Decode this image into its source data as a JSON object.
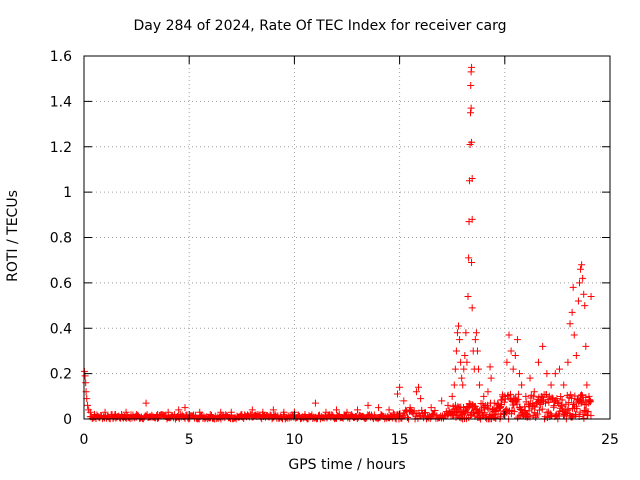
{
  "chart_data": {
    "type": "scatter",
    "title": "Day 284 of 2024, Rate Of TEC Index for receiver carg",
    "xlabel": "GPS time / hours",
    "ylabel": "ROTI / TECUs",
    "xlim": [
      0,
      25
    ],
    "ylim": [
      0,
      1.6
    ],
    "xticks": [
      "0",
      "5",
      "10",
      "15",
      "20",
      "25"
    ],
    "yticks": [
      "0",
      "0.2",
      "0.4",
      "0.6",
      "0.8",
      "1",
      "1.2",
      "1.4",
      "1.6"
    ],
    "grid": true,
    "marker": "+",
    "color": "#ff0000",
    "series": [
      {
        "name": "ROTI",
        "points": [
          [
            0.02,
            0.21
          ],
          [
            0.05,
            0.19
          ],
          [
            0.08,
            0.16
          ],
          [
            0.1,
            0.12
          ],
          [
            0.13,
            0.09
          ],
          [
            0.17,
            0.06
          ],
          [
            0.22,
            0.04
          ],
          [
            0.3,
            0.03
          ],
          [
            0.5,
            0.02
          ],
          [
            1.0,
            0.03
          ],
          [
            1.5,
            0.02
          ],
          [
            2.0,
            0.03
          ],
          [
            2.5,
            0.02
          ],
          [
            2.95,
            0.07
          ],
          [
            3.5,
            0.02
          ],
          [
            4.0,
            0.03
          ],
          [
            4.5,
            0.04
          ],
          [
            4.8,
            0.05
          ],
          [
            5.5,
            0.03
          ],
          [
            6.0,
            0.02
          ],
          [
            6.5,
            0.03
          ],
          [
            7.0,
            0.03
          ],
          [
            7.5,
            0.02
          ],
          [
            8.0,
            0.04
          ],
          [
            8.5,
            0.03
          ],
          [
            9.0,
            0.04
          ],
          [
            9.5,
            0.03
          ],
          [
            10.0,
            0.03
          ],
          [
            10.5,
            0.02
          ],
          [
            11.0,
            0.07
          ],
          [
            11.5,
            0.03
          ],
          [
            12.0,
            0.04
          ],
          [
            12.5,
            0.03
          ],
          [
            13.0,
            0.04
          ],
          [
            13.5,
            0.06
          ],
          [
            14.0,
            0.05
          ],
          [
            14.5,
            0.04
          ],
          [
            14.9,
            0.11
          ],
          [
            15.0,
            0.14
          ],
          [
            15.2,
            0.08
          ],
          [
            15.5,
            0.05
          ],
          [
            15.8,
            0.12
          ],
          [
            15.9,
            0.14
          ],
          [
            16.0,
            0.09
          ],
          [
            16.5,
            0.05
          ],
          [
            17.0,
            0.08
          ],
          [
            17.3,
            0.06
          ],
          [
            17.5,
            0.1
          ],
          [
            17.6,
            0.15
          ],
          [
            17.65,
            0.22
          ],
          [
            17.7,
            0.3
          ],
          [
            17.75,
            0.38
          ],
          [
            17.8,
            0.41
          ],
          [
            17.85,
            0.35
          ],
          [
            17.9,
            0.25
          ],
          [
            17.95,
            0.18
          ],
          [
            18.0,
            0.15
          ],
          [
            18.05,
            0.22
          ],
          [
            18.1,
            0.28
          ],
          [
            18.15,
            0.38
          ],
          [
            18.2,
            0.25
          ],
          [
            18.25,
            0.54
          ],
          [
            18.28,
            0.71
          ],
          [
            18.3,
            0.87
          ],
          [
            18.32,
            1.05
          ],
          [
            18.35,
            1.21
          ],
          [
            18.37,
            1.35
          ],
          [
            18.38,
            1.47
          ],
          [
            18.4,
            1.53
          ],
          [
            18.42,
            1.55
          ],
          [
            18.4,
            1.37
          ],
          [
            18.42,
            1.22
          ],
          [
            18.45,
            1.06
          ],
          [
            18.45,
            0.88
          ],
          [
            18.42,
            0.69
          ],
          [
            18.45,
            0.49
          ],
          [
            18.5,
            0.3
          ],
          [
            18.55,
            0.22
          ],
          [
            18.6,
            0.35
          ],
          [
            18.65,
            0.38
          ],
          [
            18.7,
            0.3
          ],
          [
            18.75,
            0.22
          ],
          [
            18.8,
            0.15
          ],
          [
            19.0,
            0.1
          ],
          [
            19.2,
            0.12
          ],
          [
            19.3,
            0.23
          ],
          [
            19.35,
            0.18
          ],
          [
            19.5,
            0.07
          ],
          [
            19.8,
            0.05
          ],
          [
            20.0,
            0.1
          ],
          [
            20.1,
            0.25
          ],
          [
            20.2,
            0.37
          ],
          [
            20.3,
            0.3
          ],
          [
            20.4,
            0.22
          ],
          [
            20.5,
            0.28
          ],
          [
            20.6,
            0.35
          ],
          [
            20.7,
            0.2
          ],
          [
            20.8,
            0.15
          ],
          [
            21.0,
            0.1
          ],
          [
            21.2,
            0.18
          ],
          [
            21.4,
            0.12
          ],
          [
            21.6,
            0.25
          ],
          [
            21.8,
            0.32
          ],
          [
            22.0,
            0.2
          ],
          [
            22.2,
            0.15
          ],
          [
            22.4,
            0.2
          ],
          [
            22.6,
            0.22
          ],
          [
            22.8,
            0.15
          ],
          [
            23.0,
            0.25
          ],
          [
            23.1,
            0.42
          ],
          [
            23.2,
            0.47
          ],
          [
            23.25,
            0.58
          ],
          [
            23.3,
            0.37
          ],
          [
            23.4,
            0.28
          ],
          [
            23.5,
            0.52
          ],
          [
            23.55,
            0.6
          ],
          [
            23.6,
            0.66
          ],
          [
            23.65,
            0.68
          ],
          [
            23.7,
            0.62
          ],
          [
            23.75,
            0.55
          ],
          [
            23.8,
            0.5
          ],
          [
            23.85,
            0.32
          ],
          [
            23.9,
            0.15
          ],
          [
            24.0,
            0.1
          ],
          [
            24.1,
            0.54
          ]
        ],
        "bands": [
          {
            "x": [
              0.3,
              14.7
            ],
            "max": 0.02
          },
          {
            "x": [
              14.7,
              17.5
            ],
            "max": 0.04
          },
          {
            "x": [
              17.5,
              19.8
            ],
            "max": 0.07
          },
          {
            "x": [
              19.8,
              24.1
            ],
            "max": 0.11
          }
        ]
      }
    ]
  }
}
